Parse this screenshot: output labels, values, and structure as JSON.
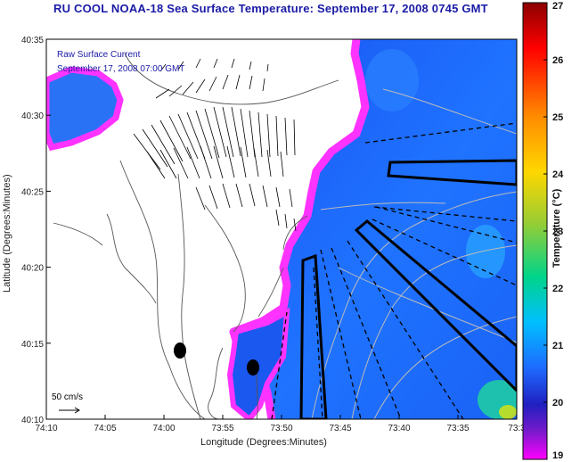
{
  "title": "RU COOL  NOAA-18  Sea Surface Temperature:  September 17, 2008 0745 GMT",
  "legend": {
    "line1": "Raw Surface Current",
    "line2": "September 17, 2008 07:00 GMT",
    "scale_label": "50 cm/s"
  },
  "axes": {
    "xlabel": "Longitude (Degrees:Minutes)",
    "ylabel": "Latitude (Degrees:Minutes)",
    "xticks": [
      "74:10",
      "74:05",
      "74:00",
      "73:55",
      "73:50",
      "73:45",
      "73:40",
      "73:35",
      "73:3"
    ],
    "yticks": [
      "40:35",
      "40:30",
      "40:25",
      "40:20",
      "40:15",
      "40:10"
    ]
  },
  "colorbar": {
    "title": "Temperature (°C)",
    "ticks": [
      "27",
      "26",
      "25",
      "24",
      "23",
      "22",
      "21",
      "20",
      "19"
    ],
    "colors": [
      "#8b0000",
      "#ff0000",
      "#ff8c00",
      "#ffd700",
      "#9acd32",
      "#00d48a",
      "#00bfff",
      "#1e6aff",
      "#2020c0",
      "#7a1acc",
      "#ff00ff"
    ]
  }
}
